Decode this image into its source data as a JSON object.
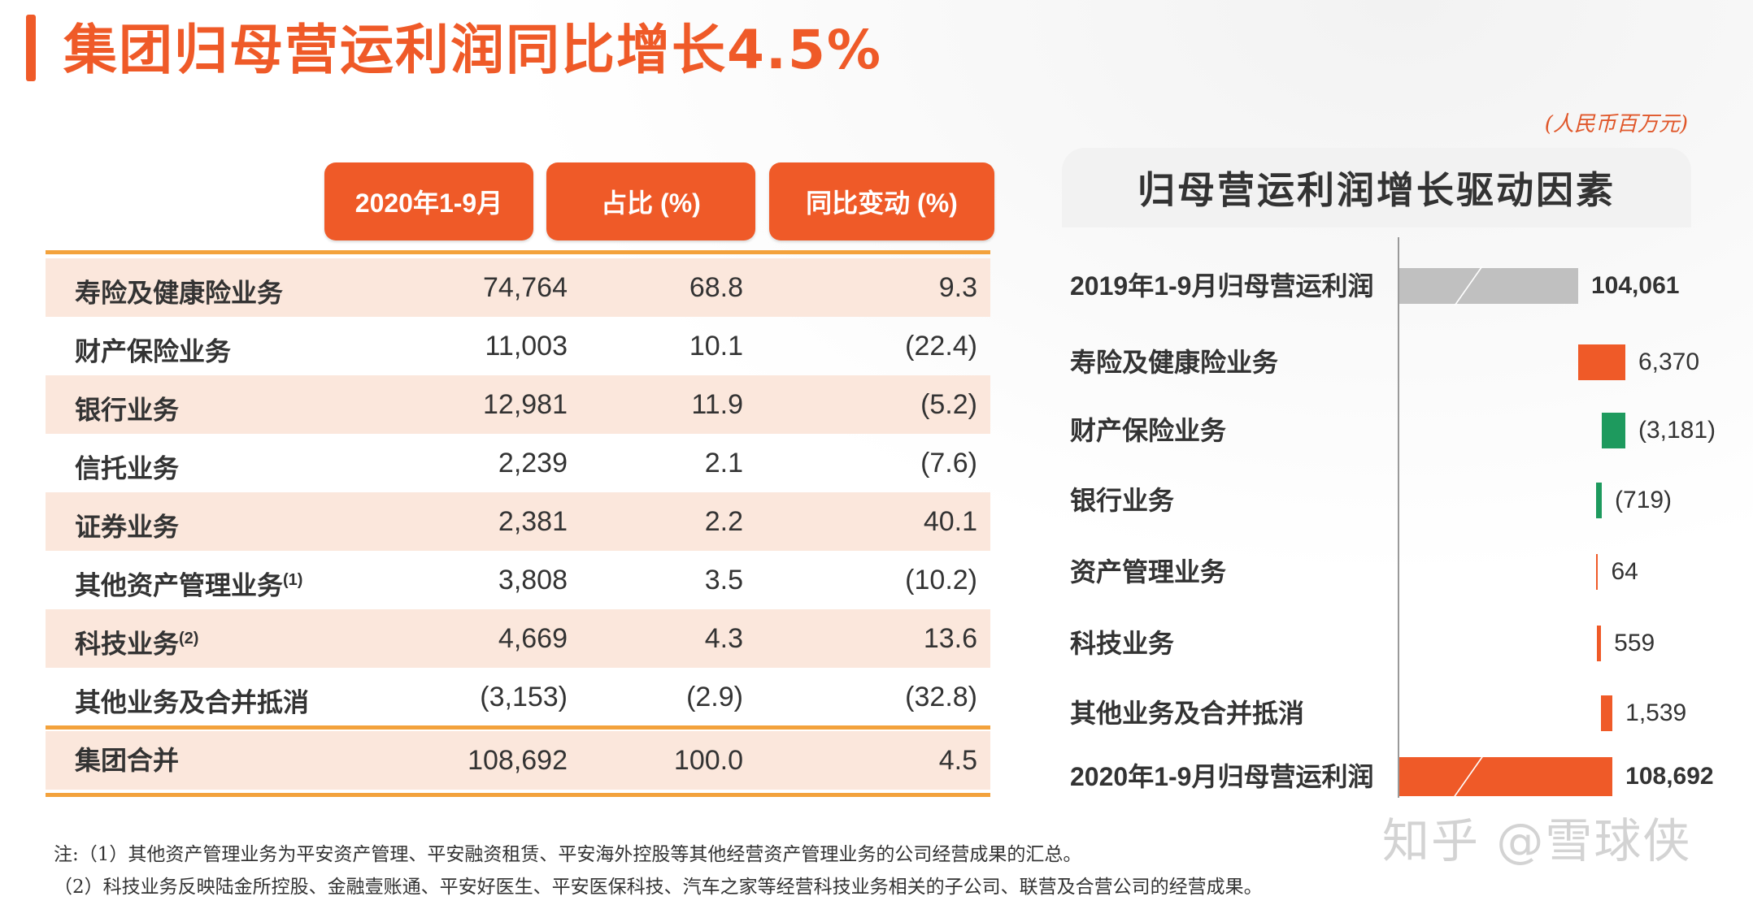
{
  "title": "集团归母营运利润同比增长4.5%",
  "unit": "(人民币百万元)",
  "table": {
    "headers": [
      "2020年1-9月",
      "占比 (%)",
      "同比变动 (%)"
    ],
    "rows": [
      {
        "label": "寿险及健康险业务",
        "sup": "",
        "amount": "74,764",
        "share": "68.8",
        "yoy": "9.3"
      },
      {
        "label": "财产保险业务",
        "sup": "",
        "amount": "11,003",
        "share": "10.1",
        "yoy": "(22.4)"
      },
      {
        "label": "银行业务",
        "sup": "",
        "amount": "12,981",
        "share": "11.9",
        "yoy": "(5.2)"
      },
      {
        "label": "信托业务",
        "sup": "",
        "amount": "2,239",
        "share": "2.1",
        "yoy": "(7.6)"
      },
      {
        "label": "证券业务",
        "sup": "",
        "amount": "2,381",
        "share": "2.2",
        "yoy": "40.1"
      },
      {
        "label": "其他资产管理业务",
        "sup": "(1)",
        "amount": "3,808",
        "share": "3.5",
        "yoy": "(10.2)"
      },
      {
        "label": "科技业务",
        "sup": "(2)",
        "amount": "4,669",
        "share": "4.3",
        "yoy": "13.6"
      },
      {
        "label": "其他业务及合并抵消",
        "sup": "",
        "amount": "(3,153)",
        "share": "(2.9)",
        "yoy": "(32.8)"
      }
    ],
    "total": {
      "label": "集团合并",
      "amount": "108,692",
      "share": "100.0",
      "yoy": "4.5"
    }
  },
  "chart_data": {
    "type": "bar",
    "subtype": "waterfall",
    "title": "归母营运利润增长驱动因素",
    "categories": [
      "2019年1-9月归母营运利润",
      "寿险及健康险业务",
      "财产保险业务",
      "银行业务",
      "资产管理业务",
      "科技业务",
      "其他业务及合并抵消",
      "2020年1-9月归母营运利润"
    ],
    "values": [
      104061,
      6370,
      -3181,
      -719,
      64,
      559,
      1539,
      108692
    ],
    "value_labels": [
      "104,061",
      "6,370",
      "(3,181)",
      "(719)",
      "64",
      "559",
      "1,539",
      "108,692"
    ],
    "bar_kinds": [
      "total",
      "increase",
      "decrease",
      "decrease",
      "increase",
      "increase",
      "increase",
      "total"
    ],
    "colors": {
      "total_2019": "#c0c0c0",
      "total_2020": "#ef5a28",
      "increase": "#ef5a28",
      "decrease": "#1e9a5e"
    },
    "axis_break": true
  },
  "notes": [
    "注:（1）其他资产管理业务为平安资产管理、平安融资租赁、平安海外控股等其他经营资产管理业务的公司经营成果的汇总。",
    "（2）科技业务反映陆金所控股、金融壹账通、平安好医生、平安医保科技、汽车之家等经营科技业务相关的子公司、联营及合营公司的经营成果。"
  ],
  "watermark": "知乎 @雪球侠"
}
